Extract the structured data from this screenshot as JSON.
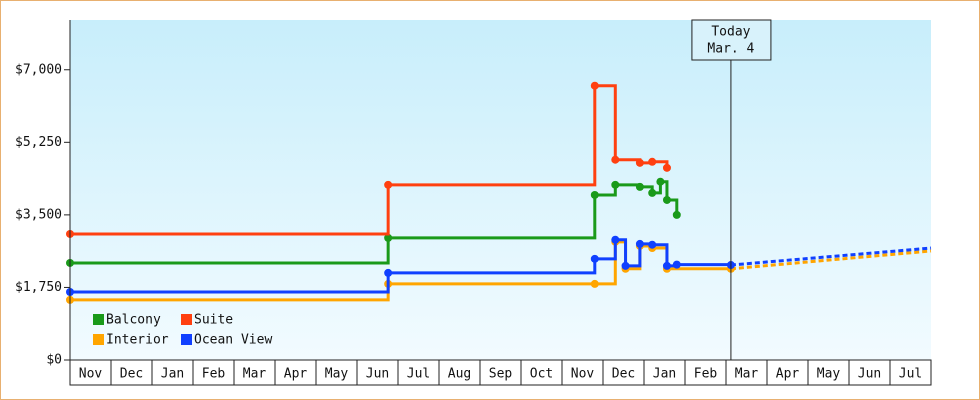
{
  "chart_data": {
    "type": "step-line",
    "categories": [
      "Nov",
      "Dec",
      "Jan",
      "Feb",
      "Mar",
      "Apr",
      "May",
      "Jun",
      "Jul",
      "Aug",
      "Sep",
      "Oct",
      "Nov",
      "Dec",
      "Jan",
      "Feb",
      "Mar",
      "Apr",
      "May",
      "Jun",
      "Jul"
    ],
    "xlim": [
      0,
      21
    ],
    "ylim": [
      0,
      8200
    ],
    "yticks": [
      {
        "value": 0,
        "label": "$0"
      },
      {
        "value": 1750,
        "label": "$1,750"
      },
      {
        "value": 3500,
        "label": "$3,500"
      },
      {
        "value": 5250,
        "label": "$5,250"
      },
      {
        "value": 7000,
        "label": "$7,000"
      }
    ],
    "series": [
      {
        "name": "Balcony",
        "color": "#1a9a1a",
        "x": [
          0,
          7.76,
          12.8,
          13.3,
          13.9,
          14.2,
          14.4,
          14.56,
          14.8
        ],
        "values": [
          2340,
          2945,
          3980,
          4225,
          4175,
          4030,
          4300,
          3860,
          3500
        ]
      },
      {
        "name": "Suite",
        "color": "#ff4010",
        "x": [
          0,
          7.76,
          12.8,
          13.3,
          13.9,
          14.2,
          14.56
        ],
        "values": [
          3040,
          4225,
          6615,
          4830,
          4755,
          4780,
          4635
        ]
      },
      {
        "name": "Interior",
        "color": "#ffa500",
        "x": [
          0,
          7.76,
          12.8,
          13.3,
          13.55,
          13.9,
          14.2,
          14.56,
          16.12
        ],
        "values": [
          1450,
          1835,
          1835,
          2850,
          2200,
          2750,
          2700,
          2200,
          2200
        ],
        "forecast_x": [
          16.12,
          21
        ],
        "forecast_values": [
          2200,
          2630
        ]
      },
      {
        "name": "Ocean View",
        "color": "#1040ff",
        "x": [
          0,
          7.76,
          12.8,
          13.3,
          13.55,
          13.9,
          14.2,
          14.56,
          14.8,
          16.12
        ],
        "values": [
          1640,
          2100,
          2440,
          2900,
          2270,
          2800,
          2780,
          2270,
          2300,
          2290
        ],
        "forecast_x": [
          16.12,
          21
        ],
        "forecast_values": [
          2290,
          2700
        ]
      }
    ],
    "annotation": {
      "line1": "Today",
      "line2": "Mar. 4",
      "x": 16.12
    }
  }
}
